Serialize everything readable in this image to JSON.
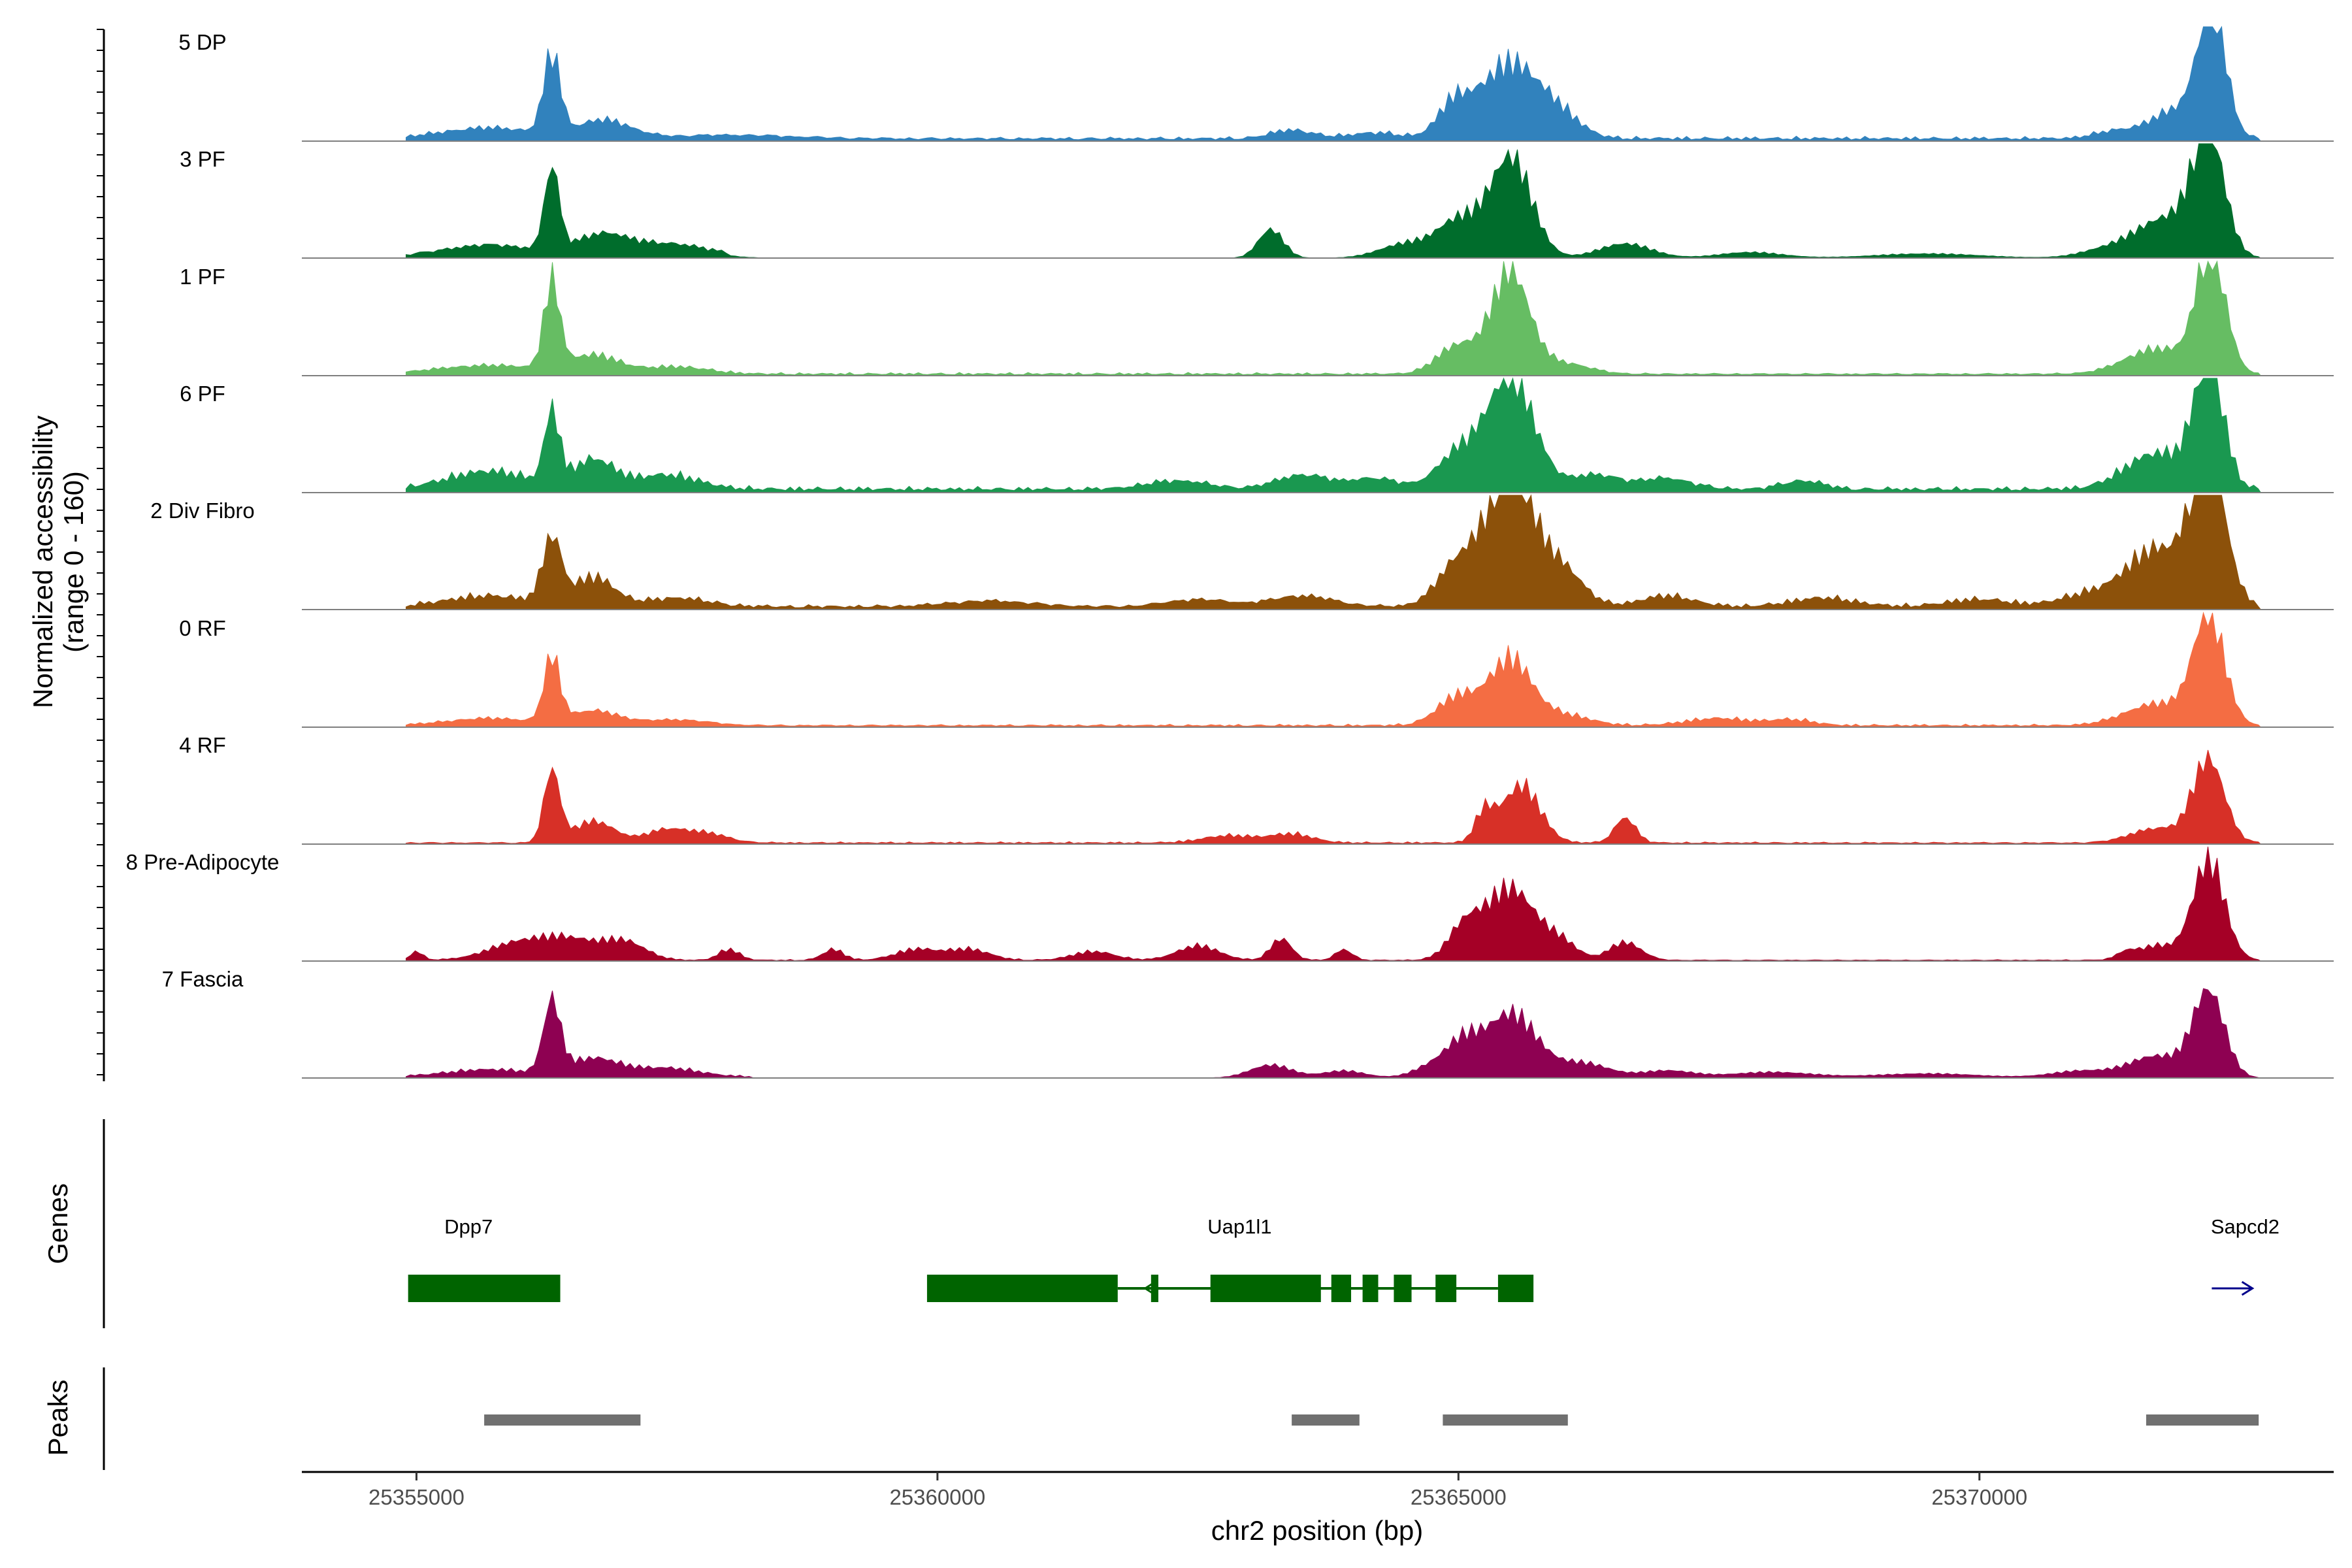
{
  "chart_data": {
    "type": "area",
    "title": "",
    "region": {
      "chrom": "chr2",
      "start": 25353900,
      "end": 25373400
    },
    "xlabel": "chr2 position (bp)",
    "ylabel_line1": "Normalized accessibility",
    "ylabel_line2": "(range 0 - 160)",
    "ylim": [
      0,
      160
    ],
    "x_ticks": [
      {
        "value": 25355000,
        "label": "25355000"
      },
      {
        "value": 25360000,
        "label": "25360000"
      },
      {
        "value": 25365000,
        "label": "25365000"
      },
      {
        "value": 25370000,
        "label": "25370000"
      }
    ],
    "track_start": 25354900,
    "track_end": 25372700,
    "series": [
      {
        "name": "5 DP",
        "color": "#3182bd",
        "baseline": 6,
        "cutoff": 25372700,
        "peaks": [
          [
            25356300,
            110,
            80
          ],
          [
            25356800,
            25,
            250
          ],
          [
            25355700,
            15,
            450
          ],
          [
            25358000,
            5,
            600
          ],
          [
            25363400,
            12,
            200
          ],
          [
            25364200,
            8,
            250
          ],
          [
            25365500,
            105,
            300
          ],
          [
            25364950,
            40,
            150
          ],
          [
            25366000,
            20,
            200
          ],
          [
            25372230,
            180,
            130
          ],
          [
            25371900,
            40,
            250
          ],
          [
            25371300,
            10,
            200
          ]
        ]
      },
      {
        "name": "3 PF",
        "color": "#006d2c",
        "baseline": 6,
        "cutoff": 25358000,
        "peaks": [
          [
            25356300,
            115,
            70
          ],
          [
            25356800,
            30,
            280
          ],
          [
            25355700,
            15,
            400
          ],
          [
            25357500,
            15,
            300
          ],
          [
            25363200,
            40,
            120
          ],
          [
            25364500,
            20,
            250
          ],
          [
            25365500,
            140,
            200
          ],
          [
            25365000,
            50,
            200
          ],
          [
            25366600,
            20,
            250
          ],
          [
            25367800,
            8,
            300
          ],
          [
            25372200,
            160,
            150
          ],
          [
            25371800,
            55,
            300
          ],
          [
            25371200,
            10,
            250
          ],
          [
            25369500,
            6,
            500
          ]
        ]
      },
      {
        "name": "1 PF",
        "color": "#66bd63",
        "baseline": 4,
        "cutoff": 25372700,
        "peaks": [
          [
            25356300,
            120,
            75
          ],
          [
            25356700,
            25,
            250
          ],
          [
            25355700,
            12,
            500
          ],
          [
            25357500,
            10,
            300
          ],
          [
            25365500,
            140,
            180
          ],
          [
            25365000,
            40,
            200
          ],
          [
            25366000,
            15,
            250
          ],
          [
            25372220,
            170,
            140
          ],
          [
            25371700,
            35,
            300
          ]
        ]
      },
      {
        "name": "6 PF",
        "color": "#1a9850",
        "baseline": 8,
        "cutoff": 25372700,
        "peaks": [
          [
            25356300,
            100,
            70
          ],
          [
            25356700,
            40,
            200
          ],
          [
            25355700,
            25,
            400
          ],
          [
            25357400,
            20,
            300
          ],
          [
            25362300,
            12,
            300
          ],
          [
            25363500,
            20,
            250
          ],
          [
            25364200,
            15,
            250
          ],
          [
            25365500,
            160,
            220
          ],
          [
            25365000,
            50,
            200
          ],
          [
            25366300,
            20,
            250
          ],
          [
            25367000,
            15,
            250
          ],
          [
            25368300,
            12,
            200
          ],
          [
            25372200,
            170,
            140
          ],
          [
            25371700,
            50,
            300
          ]
        ]
      },
      {
        "name": "2 Div Fibro",
        "color": "#8c510a",
        "baseline": 7,
        "cutoff": 25372700,
        "peaks": [
          [
            25356300,
            90,
            90
          ],
          [
            25356700,
            40,
            200
          ],
          [
            25355700,
            15,
            400
          ],
          [
            25357500,
            12,
            300
          ],
          [
            25360500,
            8,
            400
          ],
          [
            25362500,
            10,
            300
          ],
          [
            25363500,
            15,
            300
          ],
          [
            25365500,
            190,
            220
          ],
          [
            25365000,
            60,
            200
          ],
          [
            25366000,
            50,
            200
          ],
          [
            25367000,
            15,
            250
          ],
          [
            25368500,
            12,
            300
          ],
          [
            25370000,
            10,
            300
          ],
          [
            25372200,
            200,
            160
          ],
          [
            25371700,
            80,
            300
          ],
          [
            25371000,
            15,
            250
          ]
        ]
      },
      {
        "name": "0 RF",
        "color": "#f46d43",
        "baseline": 4,
        "cutoff": 25372700,
        "peaks": [
          [
            25356300,
            90,
            75
          ],
          [
            25356700,
            20,
            250
          ],
          [
            25355700,
            10,
            400
          ],
          [
            25357500,
            8,
            300
          ],
          [
            25365500,
            90,
            200
          ],
          [
            25365000,
            40,
            200
          ],
          [
            25366000,
            15,
            250
          ],
          [
            25367500,
            10,
            300
          ],
          [
            25368200,
            8,
            200
          ],
          [
            25372200,
            150,
            150
          ],
          [
            25371700,
            30,
            300
          ]
        ]
      },
      {
        "name": "4 RF",
        "color": "#d73027",
        "baseline": 3,
        "cutoff": 25372700,
        "peaks": [
          [
            25356300,
            100,
            75
          ],
          [
            25356700,
            30,
            200
          ],
          [
            25357400,
            18,
            200
          ],
          [
            25357800,
            12,
            200
          ],
          [
            25362800,
            10,
            250
          ],
          [
            25363400,
            12,
            200
          ],
          [
            25365250,
            40,
            90
          ],
          [
            25365600,
            80,
            180
          ],
          [
            25366600,
            35,
            100
          ],
          [
            25372200,
            115,
            150
          ],
          [
            25371700,
            20,
            250
          ]
        ]
      },
      {
        "name": "8 Pre-Adipocyte",
        "color": "#a50026",
        "baseline": 2,
        "cutoff": 25372700,
        "peaks": [
          [
            25355000,
            12,
            60
          ],
          [
            25356000,
            25,
            300
          ],
          [
            25356500,
            25,
            250
          ],
          [
            25357000,
            25,
            200
          ],
          [
            25358000,
            15,
            100
          ],
          [
            25359000,
            15,
            100
          ],
          [
            25359800,
            15,
            200
          ],
          [
            25360300,
            15,
            200
          ],
          [
            25361500,
            12,
            200
          ],
          [
            25362500,
            20,
            200
          ],
          [
            25363300,
            30,
            100
          ],
          [
            25363900,
            15,
            80
          ],
          [
            25365500,
            100,
            250
          ],
          [
            25365050,
            40,
            150
          ],
          [
            25366000,
            20,
            150
          ],
          [
            25366600,
            25,
            150
          ],
          [
            25371400,
            8,
            80
          ],
          [
            25372200,
            140,
            150
          ],
          [
            25371700,
            20,
            200
          ]
        ]
      },
      {
        "name": "7 Fascia",
        "color": "#8e0152",
        "baseline": 3,
        "cutoff": 25358200,
        "peaks": [
          [
            25356300,
            100,
            80
          ],
          [
            25356700,
            25,
            250
          ],
          [
            25355700,
            10,
            400
          ],
          [
            25357400,
            12,
            300
          ],
          [
            25363200,
            18,
            200
          ],
          [
            25363900,
            10,
            200
          ],
          [
            25364800,
            20,
            200
          ],
          [
            25365500,
            90,
            250
          ],
          [
            25365050,
            35,
            150
          ],
          [
            25366200,
            20,
            250
          ],
          [
            25367000,
            10,
            250
          ],
          [
            25368000,
            8,
            400
          ],
          [
            25369500,
            6,
            500
          ],
          [
            25372200,
            120,
            150
          ],
          [
            25371700,
            30,
            250
          ],
          [
            25371000,
            10,
            300
          ]
        ]
      }
    ],
    "genes_panel": {
      "title": "Genes",
      "genes": [
        {
          "name": "Dpp7",
          "label_x": 25355500,
          "exons": [
            [
              25354920,
              25356380
            ]
          ],
          "intron": null,
          "strand": "-",
          "color": "#006400"
        },
        {
          "name": "Uap1l1",
          "label_x": 25362900,
          "exons": [
            [
              25359900,
              25361730
            ],
            [
              25362050,
              25362120
            ],
            [
              25362620,
              25363680
            ],
            [
              25363780,
              25363970
            ],
            [
              25364080,
              25364230
            ],
            [
              25364380,
              25364550
            ],
            [
              25364780,
              25364980
            ],
            [
              25365380,
              25365720
            ]
          ],
          "intron": [
            25361730,
            25365380
          ],
          "strand": "-",
          "color": "#006400"
        },
        {
          "name": "Sapcd2",
          "label_x": 25372550,
          "exons": [],
          "intron": null,
          "strand": "+",
          "arrow": [
            25372230,
            25372620
          ],
          "color": "#00008b"
        }
      ]
    },
    "peaks_panel": {
      "title": "Peaks",
      "color": "#707070",
      "peaks": [
        [
          25355650,
          25357150
        ],
        [
          25363400,
          25364050
        ],
        [
          25364850,
          25366050
        ],
        [
          25371600,
          25372680
        ]
      ]
    }
  }
}
